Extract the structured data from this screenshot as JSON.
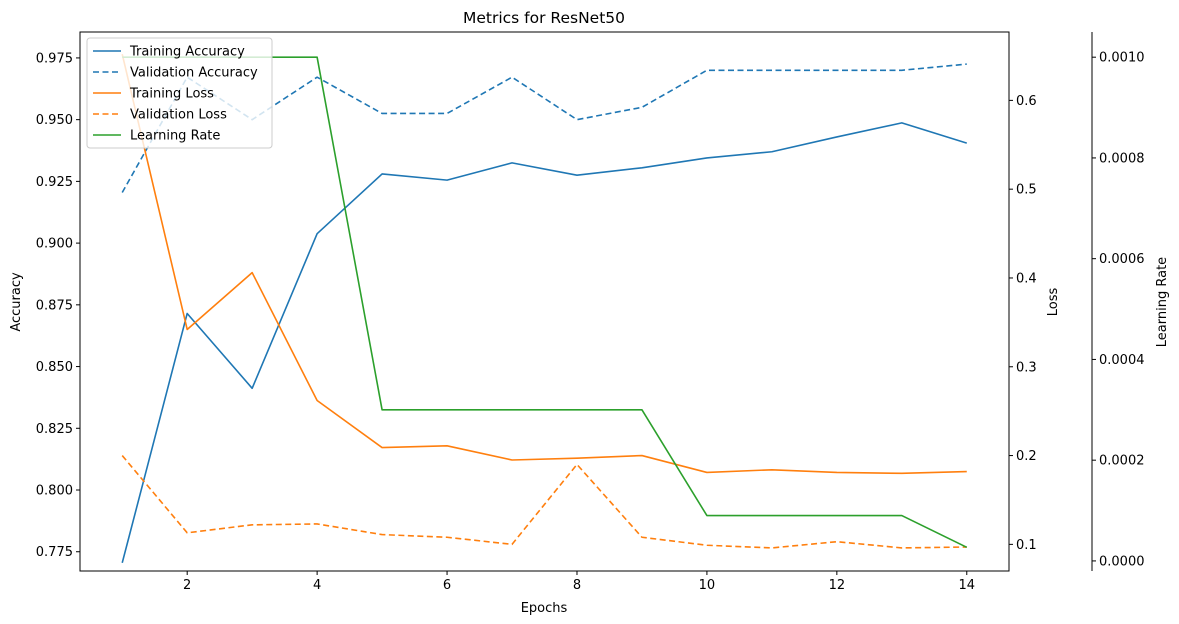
{
  "chart_data": {
    "type": "line",
    "title": "Metrics for ResNet50",
    "xlabel": "Epochs",
    "ylabel": "Accuracy",
    "ylabel_right": "Loss",
    "ylabel_right2": "Learning Rate",
    "x": [
      1,
      2,
      3,
      4,
      5,
      6,
      7,
      8,
      9,
      10,
      11,
      12,
      13,
      14
    ],
    "xticks": [
      "2",
      "4",
      "6",
      "8",
      "10",
      "12",
      "14"
    ],
    "xticks_values": [
      2,
      4,
      6,
      8,
      10,
      12,
      14
    ],
    "xlim": [
      0.35,
      14.65
    ],
    "ylim": [
      0.7672,
      0.9855
    ],
    "ylim_right": [
      0.07,
      0.677
    ],
    "ylim_right2": [
      -2e-05,
      0.00105
    ],
    "yticks": [
      "0.775",
      "0.800",
      "0.825",
      "0.850",
      "0.875",
      "0.900",
      "0.925",
      "0.950",
      "0.975"
    ],
    "yticks_values": [
      0.775,
      0.8,
      0.825,
      0.85,
      0.875,
      0.9,
      0.925,
      0.95,
      0.975
    ],
    "yticks_right": [
      "0.1",
      "0.2",
      "0.3",
      "0.4",
      "0.5",
      "0.6"
    ],
    "yticks_right_values": [
      0.1,
      0.2,
      0.3,
      0.4,
      0.5,
      0.6
    ],
    "yticks_right2": [
      "0.0000",
      "0.0002",
      "0.0004",
      "0.0006",
      "0.0008",
      "0.0010"
    ],
    "yticks_right2_values": [
      0,
      0.0002,
      0.0004,
      0.0006,
      0.0008,
      0.001
    ],
    "legend_position": "top-left",
    "grid": false,
    "series": [
      {
        "name": "Training Accuracy",
        "axis": "left",
        "color": "#1f77b4",
        "dashed": false,
        "values": [
          0.7705,
          0.8715,
          0.8412,
          0.9038,
          0.928,
          0.9255,
          0.9325,
          0.9275,
          0.9305,
          0.9345,
          0.937,
          0.943,
          0.9487,
          0.9405
        ]
      },
      {
        "name": "Validation Accuracy",
        "axis": "left",
        "color": "#1f77b4",
        "dashed": false,
        "dash": true,
        "values": [
          0.9205,
          0.9672,
          0.95,
          0.9672,
          0.9525,
          0.9525,
          0.9672,
          0.95,
          0.955,
          0.97,
          0.97,
          0.97,
          0.97,
          0.9725
        ]
      },
      {
        "name": "Training Loss",
        "axis": "right",
        "color": "#ff7f0e",
        "dashed": false,
        "values": [
          0.652,
          0.342,
          0.406,
          0.262,
          0.209,
          0.211,
          0.195,
          0.197,
          0.2,
          0.181,
          0.184,
          0.181,
          0.18,
          0.182
        ]
      },
      {
        "name": "Validation Loss",
        "axis": "right",
        "color": "#ff7f0e",
        "dashed": false,
        "dash": true,
        "values": [
          0.2,
          0.113,
          0.122,
          0.123,
          0.111,
          0.108,
          0.1,
          0.19,
          0.108,
          0.099,
          0.096,
          0.103,
          0.096,
          0.097
        ]
      },
      {
        "name": "Learning Rate",
        "axis": "right2",
        "color": "#2ca02c",
        "dashed": false,
        "values": [
          0.001,
          0.001,
          0.001,
          0.001,
          0.0003,
          0.0003,
          0.0003,
          0.0003,
          0.0003,
          9e-05,
          9e-05,
          9e-05,
          9e-05,
          2.7e-05
        ]
      }
    ]
  }
}
